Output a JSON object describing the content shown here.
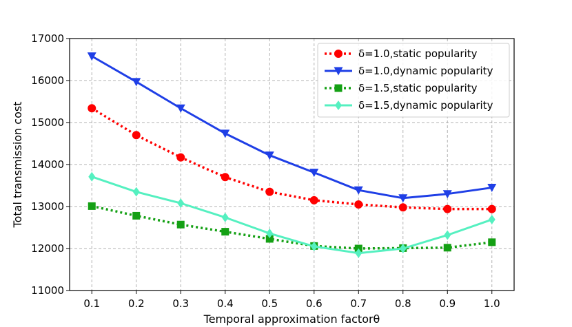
{
  "chart_data": {
    "type": "line",
    "title": "",
    "xlabel": "Temporal approximation factorθ",
    "ylabel": "Total transmission cost",
    "x": [
      0.1,
      0.2,
      0.3,
      0.4,
      0.5,
      0.6,
      0.7,
      0.8,
      0.9,
      1.0
    ],
    "x_tick_labels": [
      "0.1",
      "0.2",
      "0.3",
      "0.4",
      "0.5",
      "0.6",
      "0.7",
      "0.8",
      "0.9",
      "1.0"
    ],
    "xlim": [
      0.05,
      1.05
    ],
    "ylim": [
      11000,
      17000
    ],
    "y_ticks": [
      11000,
      12000,
      13000,
      14000,
      15000,
      16000,
      17000
    ],
    "y_tick_labels": [
      "11000",
      "12000",
      "13000",
      "14000",
      "15000",
      "16000",
      "17000"
    ],
    "grid": true,
    "legend_position": "top-right",
    "series": [
      {
        "name": "δ=1.0,static popularity",
        "color": "#ff0000",
        "line_style": "dotted",
        "marker": "circle",
        "values": [
          15340,
          14700,
          14170,
          13700,
          13350,
          13150,
          13050,
          12980,
          12940,
          12940
        ]
      },
      {
        "name": "δ=1.0,dynamic popularity",
        "color": "#1f3fe6",
        "line_style": "solid",
        "marker": "triangle-down",
        "values": [
          16580,
          15970,
          15340,
          14740,
          14220,
          13810,
          13390,
          13200,
          13300,
          13450
        ]
      },
      {
        "name": "δ=1.5,static popularity",
        "color": "#14a014",
        "line_style": "dotted",
        "marker": "square",
        "values": [
          13010,
          12780,
          12570,
          12400,
          12230,
          12060,
          12000,
          12010,
          12020,
          12150
        ]
      },
      {
        "name": "δ=1.5,dynamic popularity",
        "color": "#55f0c0",
        "line_style": "solid",
        "marker": "diamond",
        "values": [
          13710,
          13350,
          13080,
          12740,
          12360,
          12050,
          11890,
          12000,
          12320,
          12690
        ]
      }
    ]
  }
}
